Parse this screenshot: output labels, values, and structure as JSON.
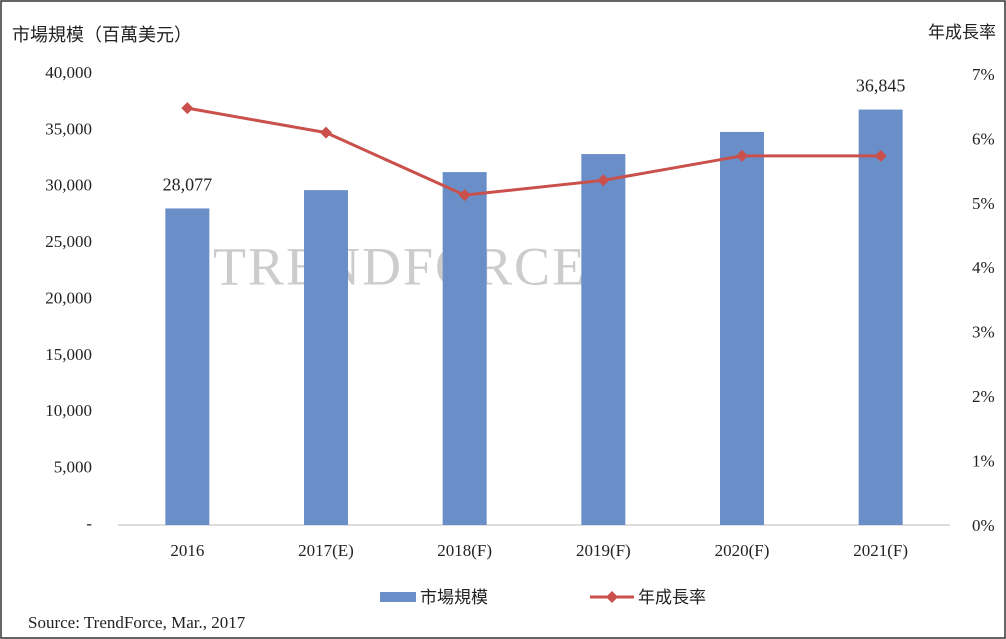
{
  "chart_data": {
    "type": "bar_line",
    "title": "市場規模（百萬美元）",
    "y2_title": "年成長率",
    "watermark": "TRENDFORCE",
    "source": "Source: TrendForce, Mar., 2017",
    "categories": [
      "2016",
      "2017(E)",
      "2018(F)",
      "2019(F)",
      "2020(F)",
      "2021(F)"
    ],
    "series": [
      {
        "name": "市場規模",
        "type": "bar",
        "color": "#6a8fc8",
        "values": [
          28077,
          29700,
          31300,
          32900,
          34860,
          36845
        ],
        "value_labels": [
          "28,077",
          null,
          null,
          null,
          null,
          "36,845"
        ]
      },
      {
        "name": "年成長率",
        "type": "line",
        "axis": "y2",
        "color": "#c9504b",
        "values": [
          6.47,
          6.09,
          5.12,
          5.35,
          5.73,
          5.73
        ]
      }
    ],
    "ylim": [
      0,
      40000
    ],
    "yticks": [
      {
        "value": 0,
        "label": "-"
      },
      {
        "value": 5000,
        "label": "5,000"
      },
      {
        "value": 10000,
        "label": "10,000"
      },
      {
        "value": 15000,
        "label": "15,000"
      },
      {
        "value": 20000,
        "label": "20,000"
      },
      {
        "value": 25000,
        "label": "25,000"
      },
      {
        "value": 30000,
        "label": "30,000"
      },
      {
        "value": 35000,
        "label": "35,000"
      },
      {
        "value": 40000,
        "label": "40,000"
      }
    ],
    "y2lim": [
      0,
      7
    ],
    "y2ticks": [
      {
        "value": 0,
        "label": "0%"
      },
      {
        "value": 1,
        "label": "1%"
      },
      {
        "value": 2,
        "label": "2%"
      },
      {
        "value": 3,
        "label": "3%"
      },
      {
        "value": 4,
        "label": "4%"
      },
      {
        "value": 5,
        "label": "5%"
      },
      {
        "value": 6,
        "label": "6%"
      },
      {
        "value": 7,
        "label": "7%"
      }
    ],
    "grid": false
  }
}
